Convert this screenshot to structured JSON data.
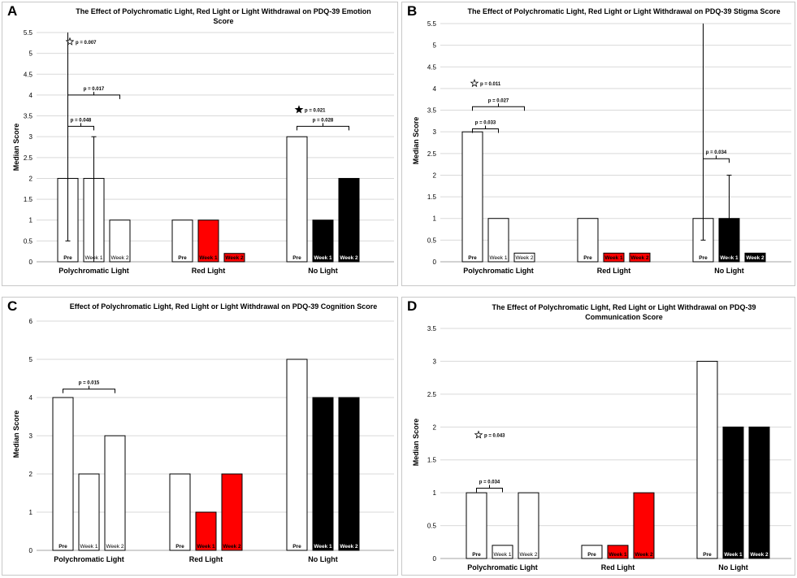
{
  "chart_data": [
    {
      "panel": "A",
      "type": "bar",
      "title_lines": [
        "The Effect of Polychromatic Light, Red Light or Light Withdrawal on PDQ-39 Emotion",
        "Score"
      ],
      "ylabel": "Median Score",
      "ylim": [
        0,
        5.5
      ],
      "yticks": [
        0,
        0.5,
        1,
        1.5,
        2,
        2.5,
        3,
        3.5,
        4,
        4.5,
        5,
        5.5
      ],
      "groups": [
        "Polychromatic Light",
        "Red Light",
        "No Light"
      ],
      "bar_labels": [
        "Pre",
        "Week 1",
        "Week 2"
      ],
      "values": [
        [
          2,
          2,
          1
        ],
        [
          1,
          1,
          0.2
        ],
        [
          3,
          1,
          2
        ]
      ],
      "errors": [
        {
          "group": 0,
          "bar": 0,
          "low": 0.5,
          "high": 5.5
        },
        {
          "group": 0,
          "bar": 1,
          "low": 0,
          "high": 3
        }
      ],
      "brackets": [
        {
          "group": 0,
          "from": 0,
          "to": 1,
          "y": 3.25,
          "label": "p = 0.048"
        },
        {
          "group": 0,
          "from": 0,
          "to": 2,
          "y": 4.0,
          "label": "p = 0.017"
        },
        {
          "group": 2,
          "from": 0,
          "to": 2,
          "y": 3.25,
          "label": "p = 0.028"
        }
      ],
      "stars": [
        {
          "group": 0,
          "y": 5.28,
          "filled": false,
          "label": "p = 0.007"
        },
        {
          "group": 2,
          "y": 3.65,
          "filled": true,
          "label": "p = 0.021"
        }
      ]
    },
    {
      "panel": "B",
      "type": "bar",
      "title_lines": [
        "The Effect of Polychromatic Light, Red Light or Light Withdrawal on PDQ-39 Stigma Score"
      ],
      "ylabel": "Median Score",
      "ylim": [
        0,
        5.5
      ],
      "yticks": [
        0,
        0.5,
        1,
        1.5,
        2,
        2.5,
        3,
        3.5,
        4,
        4.5,
        5,
        5.5
      ],
      "groups": [
        "Polychromatic Light",
        "Red Light",
        "No Light"
      ],
      "bar_labels": [
        "Pre",
        "Week 1",
        "Week 2"
      ],
      "values": [
        [
          3,
          1,
          0.2
        ],
        [
          1,
          0.2,
          0.2
        ],
        [
          1,
          1,
          0.2
        ]
      ],
      "errors": [
        {
          "group": 2,
          "bar": 0,
          "low": 0.5,
          "high": 5.5
        },
        {
          "group": 2,
          "bar": 1,
          "low": 0,
          "high": 2
        }
      ],
      "brackets": [
        {
          "group": 0,
          "from": 0,
          "to": 1,
          "y": 3.07,
          "label": "p = 0.033"
        },
        {
          "group": 0,
          "from": 0,
          "to": 2,
          "y": 3.58,
          "label": "p = 0.027"
        },
        {
          "group": 2,
          "from": 0,
          "to": 1,
          "y": 2.38,
          "label": "p = 0.034"
        }
      ],
      "stars": [
        {
          "group": 0,
          "y": 4.12,
          "filled": false,
          "label": "p = 0.011"
        }
      ]
    },
    {
      "panel": "C",
      "type": "bar",
      "title_lines": [
        "Effect of Polychromatic Light, Red Light or Light Withdrawal on PDQ-39 Cognition Score"
      ],
      "ylabel": "Median Score",
      "ylim": [
        0,
        6
      ],
      "yticks": [
        0,
        1,
        2,
        3,
        4,
        5,
        6
      ],
      "groups": [
        "Polychromatic Light",
        "Red Light",
        "No Light"
      ],
      "bar_labels": [
        "Pre",
        "Week 1",
        "Week 2"
      ],
      "values": [
        [
          4,
          2,
          3
        ],
        [
          2,
          1,
          2
        ],
        [
          5,
          4,
          4
        ]
      ],
      "errors": [],
      "brackets": [
        {
          "group": 0,
          "from": 0,
          "to": 2,
          "y": 4.22,
          "label": "p = 0.015"
        }
      ],
      "stars": []
    },
    {
      "panel": "D",
      "type": "bar",
      "title_lines": [
        "The Effect of Polychromatic Light, Red Light or Light Withdrawal on PDQ-39",
        "Communication Score"
      ],
      "ylabel": "Median Score",
      "ylim": [
        0,
        3.5
      ],
      "yticks": [
        0,
        0.5,
        1,
        1.5,
        2,
        2.5,
        3,
        3.5
      ],
      "groups": [
        "Polychromatic Light",
        "Red Light",
        "No Light"
      ],
      "bar_labels": [
        "Pre",
        "Week 1",
        "Week 2"
      ],
      "values": [
        [
          1,
          0.2,
          1
        ],
        [
          0.2,
          0.2,
          1
        ],
        [
          3,
          2,
          2
        ]
      ],
      "errors": [],
      "brackets": [
        {
          "group": 0,
          "from": 0,
          "to": 1,
          "y": 1.07,
          "label": "p = 0.034"
        }
      ],
      "stars": [
        {
          "group": 0,
          "y": 1.88,
          "filled": false,
          "label": "p = 0.043"
        }
      ]
    }
  ],
  "colors": {
    "group_fills": [
      "#ffffff",
      "#ff0000",
      "#000000"
    ],
    "bar_stroke": "#000000",
    "grid": "#d9d9d9",
    "text": "#000000",
    "label_on_dark": "#ffffff"
  }
}
